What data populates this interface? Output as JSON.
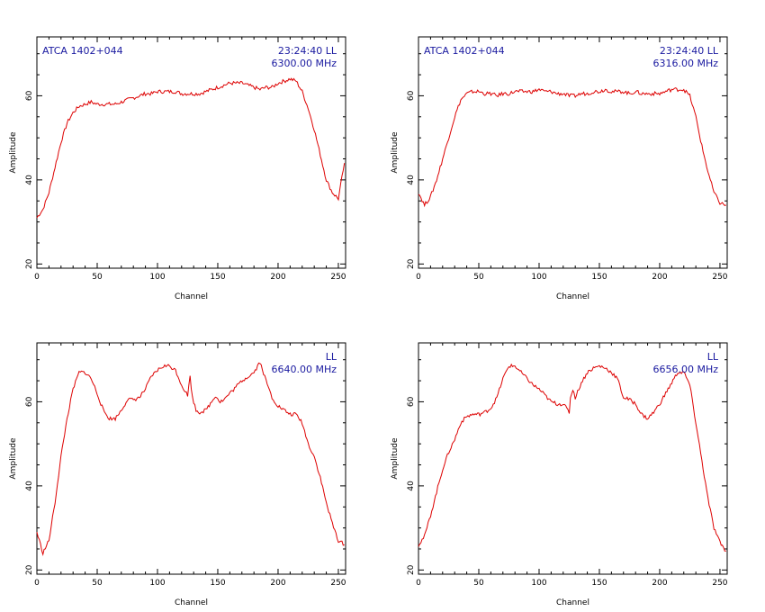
{
  "colors": {
    "axes": "#000000",
    "trace": "#dd0000",
    "annotation": "#1a1aa0"
  },
  "chart_data": [
    {
      "type": "line",
      "xlabel": "Channel",
      "ylabel": "Amplitude",
      "xlim": [
        0,
        256
      ],
      "ylim": [
        19,
        74
      ],
      "xticks": [
        "0",
        "50",
        "100",
        "150",
        "200",
        "250"
      ],
      "yticks": [
        "20",
        "40",
        "60"
      ],
      "annotations": {
        "source": "ATCA 1402+044",
        "time": "23:24:40",
        "pol": "LL",
        "freq": "6300.00 MHz"
      },
      "series": [
        {
          "x": [
            0,
            5,
            10,
            15,
            20,
            25,
            30,
            35,
            40,
            45,
            50,
            55,
            60,
            65,
            70,
            75,
            80,
            85,
            90,
            95,
            100,
            105,
            110,
            115,
            120,
            125,
            130,
            135,
            140,
            145,
            150,
            155,
            160,
            165,
            170,
            175,
            180,
            185,
            190,
            195,
            200,
            205,
            210,
            215,
            220,
            225,
            230,
            235,
            240,
            245,
            250,
            255
          ],
          "y": [
            31,
            33,
            37,
            43,
            49,
            53.5,
            56,
            57.5,
            58,
            58.5,
            58,
            58,
            58,
            58,
            58.5,
            59,
            59.5,
            60,
            60.5,
            60.5,
            61,
            61,
            61,
            61,
            60.5,
            60.5,
            60.5,
            60.5,
            61,
            61.5,
            62,
            62.5,
            63,
            63,
            63,
            62.5,
            62,
            61.5,
            62,
            62,
            63,
            63.5,
            64,
            63.5,
            61,
            57,
            52,
            46,
            40,
            37,
            35.5,
            44
          ]
        }
      ]
    },
    {
      "type": "line",
      "xlabel": "Channel",
      "ylabel": "Amplitude",
      "xlim": [
        0,
        256
      ],
      "ylim": [
        19,
        74
      ],
      "xticks": [
        "0",
        "50",
        "100",
        "150",
        "200",
        "250"
      ],
      "yticks": [
        "20",
        "40",
        "60"
      ],
      "annotations": {
        "source": "ATCA 1402+044",
        "time": "23:24:40",
        "pol": "LL",
        "freq": "6316.00 MHz"
      },
      "series": [
        {
          "x": [
            0,
            5,
            10,
            15,
            20,
            25,
            30,
            35,
            40,
            45,
            50,
            55,
            60,
            65,
            70,
            75,
            80,
            85,
            90,
            95,
            100,
            105,
            110,
            115,
            120,
            125,
            130,
            135,
            140,
            145,
            150,
            155,
            160,
            165,
            170,
            175,
            180,
            185,
            190,
            195,
            200,
            205,
            210,
            215,
            220,
            225,
            230,
            235,
            240,
            245,
            250,
            255
          ],
          "y": [
            37,
            34,
            36,
            40,
            45,
            50,
            55,
            59,
            60.5,
            61,
            61,
            60.5,
            60.5,
            60,
            60.5,
            60.5,
            61,
            61,
            61,
            61,
            61.5,
            61,
            61,
            60.5,
            60.5,
            60,
            60,
            60.5,
            60.5,
            61,
            61,
            61.5,
            61,
            61,
            61,
            60.5,
            61,
            60.5,
            60.5,
            60.5,
            60.5,
            61,
            61.5,
            61.5,
            61.5,
            60,
            55,
            48,
            42,
            37,
            34.5,
            34
          ]
        }
      ]
    },
    {
      "type": "line",
      "xlabel": "Channel",
      "ylabel": "Amplitude",
      "xlim": [
        0,
        256
      ],
      "ylim": [
        19,
        74
      ],
      "xticks": [
        "0",
        "50",
        "100",
        "150",
        "200",
        "250"
      ],
      "yticks": [
        "20",
        "40",
        "60"
      ],
      "annotations": {
        "pol": "LL",
        "freq": "6640.00 MHz"
      },
      "series": [
        {
          "x": [
            0,
            5,
            10,
            15,
            20,
            25,
            30,
            35,
            40,
            45,
            50,
            55,
            60,
            65,
            70,
            75,
            80,
            85,
            90,
            95,
            100,
            105,
            110,
            115,
            120,
            125,
            127,
            129,
            132,
            135,
            140,
            145,
            148,
            152,
            155,
            160,
            165,
            170,
            175,
            180,
            185,
            190,
            195,
            200,
            205,
            210,
            215,
            220,
            225,
            230,
            235,
            240,
            245,
            250,
            255
          ],
          "y": [
            29,
            24,
            27,
            36,
            47,
            56,
            63,
            67,
            67,
            65.5,
            62,
            58,
            56,
            56,
            58,
            60.5,
            60.5,
            61,
            63,
            66,
            67.5,
            68.5,
            68.5,
            67.5,
            64,
            61.5,
            66,
            61,
            58,
            57.5,
            58,
            60,
            61.5,
            60,
            60.5,
            62,
            63.5,
            65,
            66,
            67,
            69.5,
            65,
            61,
            59,
            58,
            57,
            57,
            55,
            50,
            47,
            42,
            36,
            31,
            27,
            26
          ]
        }
      ]
    },
    {
      "type": "line",
      "xlabel": "Channel",
      "ylabel": "Amplitude",
      "xlim": [
        0,
        256
      ],
      "ylim": [
        19,
        74
      ],
      "xticks": [
        "0",
        "50",
        "100",
        "150",
        "200",
        "250"
      ],
      "yticks": [
        "20",
        "40",
        "60"
      ],
      "annotations": {
        "pol": "LL",
        "freq": "6656.00 MHz"
      },
      "series": [
        {
          "x": [
            0,
            5,
            10,
            15,
            20,
            25,
            30,
            35,
            40,
            45,
            50,
            55,
            60,
            65,
            70,
            75,
            80,
            85,
            90,
            95,
            100,
            105,
            110,
            115,
            120,
            125,
            126,
            128,
            130,
            135,
            140,
            145,
            150,
            155,
            160,
            165,
            170,
            175,
            180,
            185,
            190,
            195,
            200,
            205,
            210,
            215,
            220,
            225,
            230,
            235,
            240,
            245,
            250,
            255
          ],
          "y": [
            26,
            28,
            33,
            38.5,
            44,
            48,
            51,
            55,
            56.5,
            57,
            57,
            57.5,
            58.5,
            61,
            65.5,
            68.5,
            68.5,
            67,
            65.5,
            64,
            63,
            61.5,
            60,
            59.5,
            59.5,
            57.5,
            61,
            63,
            61,
            64.5,
            67,
            68,
            68.5,
            68,
            67,
            65.5,
            61,
            60.5,
            59.5,
            57,
            56,
            57.5,
            59.5,
            62,
            64.5,
            67,
            67,
            64,
            55,
            46,
            37,
            30,
            26.5,
            24.5
          ]
        }
      ]
    }
  ]
}
